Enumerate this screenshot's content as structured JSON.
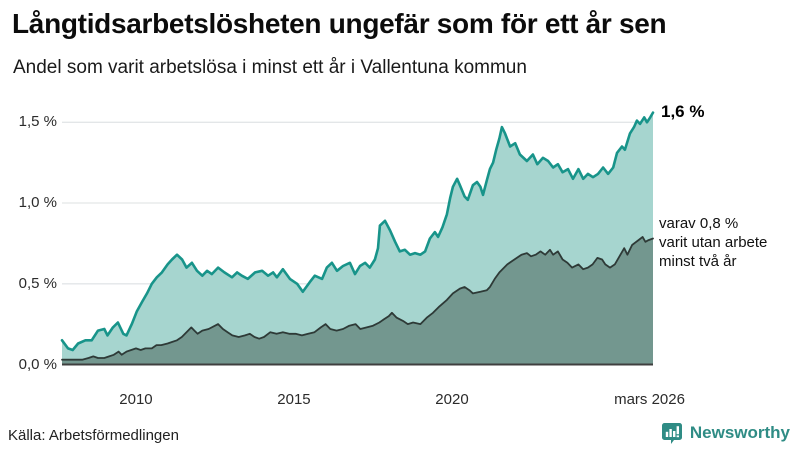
{
  "header": {
    "title": "Långtidsarbetslösheten ungefär som för ett år sen",
    "subtitle": "Andel som varit arbetslösa i minst ett år i Vallentuna kommun"
  },
  "annotations": {
    "total_end_label": "1,6 %",
    "two_plus_end_label": "varav 0,8 %\nvarit utan arbete\nminst två år"
  },
  "footer": {
    "source": "Källa: Arbetsförmedlingen",
    "brand": "Newsworthy"
  },
  "colors": {
    "total_line": "#18948a",
    "total_fill": "#a6d5cf",
    "two_plus_line": "#2e3a37",
    "two_plus_fill": "#73978f",
    "gridline": "#e3e6e8",
    "axis_line": "#3f3f3f",
    "brand_teal": "#2f8c85",
    "text": "#0c0c0c"
  },
  "chart_data": {
    "type": "area",
    "title": "Långtidsarbetslösheten ungefär som för ett år sen",
    "subtitle": "Andel som varit arbetslösa i minst ett år i Vallentuna kommun",
    "unit": "%",
    "grid": true,
    "legend_position": "end-of-line-annotations",
    "x_range": [
      2007.66,
      2026.36
    ],
    "ylim": [
      0,
      1.65
    ],
    "x_axis": {
      "ticks": [
        {
          "label": "2010",
          "year": 2010
        },
        {
          "label": "2015",
          "year": 2015
        },
        {
          "label": "2020",
          "year": 2020
        },
        {
          "label": "mars 2026",
          "year": 2026.25
        }
      ]
    },
    "y_axis": {
      "ticks": [
        {
          "label": "0,0 %",
          "value": 0
        },
        {
          "label": "0,5 %",
          "value": 0.5
        },
        {
          "label": "1,0 %",
          "value": 1.0
        },
        {
          "label": "1,5 %",
          "value": 1.5
        }
      ]
    },
    "series": [
      {
        "name": "Andel som varit arbetslösa i minst ett år",
        "end_label": "1,6 %",
        "end_value": 1.6,
        "line_color": "#18948a",
        "fill_color": "#a6d5cf",
        "points": [
          [
            2007.66,
            0.15
          ],
          [
            2007.85,
            0.1
          ],
          [
            2008.0,
            0.09
          ],
          [
            2008.17,
            0.13
          ],
          [
            2008.4,
            0.15
          ],
          [
            2008.6,
            0.15
          ],
          [
            2008.8,
            0.21
          ],
          [
            2009.0,
            0.22
          ],
          [
            2009.1,
            0.18
          ],
          [
            2009.27,
            0.23
          ],
          [
            2009.43,
            0.26
          ],
          [
            2009.6,
            0.19
          ],
          [
            2009.7,
            0.18
          ],
          [
            2009.87,
            0.25
          ],
          [
            2010.03,
            0.33
          ],
          [
            2010.2,
            0.39
          ],
          [
            2010.35,
            0.44
          ],
          [
            2010.5,
            0.5
          ],
          [
            2010.66,
            0.54
          ],
          [
            2010.82,
            0.57
          ],
          [
            2011.0,
            0.62
          ],
          [
            2011.14,
            0.65
          ],
          [
            2011.3,
            0.68
          ],
          [
            2011.46,
            0.65
          ],
          [
            2011.6,
            0.6
          ],
          [
            2011.77,
            0.63
          ],
          [
            2011.93,
            0.58
          ],
          [
            2012.1,
            0.55
          ],
          [
            2012.25,
            0.58
          ],
          [
            2012.4,
            0.56
          ],
          [
            2012.6,
            0.6
          ],
          [
            2012.8,
            0.57
          ],
          [
            2013.04,
            0.54
          ],
          [
            2013.2,
            0.57
          ],
          [
            2013.35,
            0.55
          ],
          [
            2013.54,
            0.53
          ],
          [
            2013.77,
            0.57
          ],
          [
            2013.99,
            0.58
          ],
          [
            2014.18,
            0.55
          ],
          [
            2014.34,
            0.57
          ],
          [
            2014.46,
            0.54
          ],
          [
            2014.65,
            0.59
          ],
          [
            2014.87,
            0.53
          ],
          [
            2015.1,
            0.5
          ],
          [
            2015.28,
            0.45
          ],
          [
            2015.5,
            0.51
          ],
          [
            2015.66,
            0.55
          ],
          [
            2015.89,
            0.53
          ],
          [
            2016.04,
            0.6
          ],
          [
            2016.2,
            0.63
          ],
          [
            2016.36,
            0.58
          ],
          [
            2016.55,
            0.61
          ],
          [
            2016.77,
            0.63
          ],
          [
            2016.93,
            0.56
          ],
          [
            2017.09,
            0.61
          ],
          [
            2017.25,
            0.63
          ],
          [
            2017.4,
            0.6
          ],
          [
            2017.56,
            0.65
          ],
          [
            2017.66,
            0.72
          ],
          [
            2017.72,
            0.86
          ],
          [
            2017.88,
            0.89
          ],
          [
            2018.04,
            0.83
          ],
          [
            2018.2,
            0.76
          ],
          [
            2018.35,
            0.7
          ],
          [
            2018.51,
            0.71
          ],
          [
            2018.67,
            0.68
          ],
          [
            2018.83,
            0.69
          ],
          [
            2019.0,
            0.68
          ],
          [
            2019.15,
            0.7
          ],
          [
            2019.3,
            0.78
          ],
          [
            2019.46,
            0.82
          ],
          [
            2019.56,
            0.79
          ],
          [
            2019.7,
            0.85
          ],
          [
            2019.84,
            0.93
          ],
          [
            2019.94,
            1.03
          ],
          [
            2020.03,
            1.1
          ],
          [
            2020.16,
            1.15
          ],
          [
            2020.25,
            1.11
          ],
          [
            2020.4,
            1.04
          ],
          [
            2020.5,
            1.02
          ],
          [
            2020.66,
            1.11
          ],
          [
            2020.79,
            1.13
          ],
          [
            2020.9,
            1.1
          ],
          [
            2020.98,
            1.05
          ],
          [
            2021.1,
            1.14
          ],
          [
            2021.2,
            1.21
          ],
          [
            2021.3,
            1.25
          ],
          [
            2021.4,
            1.33
          ],
          [
            2021.5,
            1.4
          ],
          [
            2021.58,
            1.47
          ],
          [
            2021.68,
            1.43
          ],
          [
            2021.84,
            1.35
          ],
          [
            2022.0,
            1.37
          ],
          [
            2022.15,
            1.3
          ],
          [
            2022.37,
            1.26
          ],
          [
            2022.56,
            1.3
          ],
          [
            2022.7,
            1.24
          ],
          [
            2022.88,
            1.28
          ],
          [
            2023.04,
            1.26
          ],
          [
            2023.2,
            1.22
          ],
          [
            2023.35,
            1.24
          ],
          [
            2023.5,
            1.19
          ],
          [
            2023.67,
            1.21
          ],
          [
            2023.83,
            1.15
          ],
          [
            2024.0,
            1.21
          ],
          [
            2024.15,
            1.15
          ],
          [
            2024.3,
            1.18
          ],
          [
            2024.46,
            1.16
          ],
          [
            2024.62,
            1.18
          ],
          [
            2024.78,
            1.22
          ],
          [
            2024.94,
            1.18
          ],
          [
            2025.1,
            1.22
          ],
          [
            2025.22,
            1.31
          ],
          [
            2025.38,
            1.35
          ],
          [
            2025.47,
            1.33
          ],
          [
            2025.63,
            1.43
          ],
          [
            2025.76,
            1.47
          ],
          [
            2025.85,
            1.51
          ],
          [
            2025.95,
            1.49
          ],
          [
            2026.08,
            1.53
          ],
          [
            2026.17,
            1.5
          ],
          [
            2026.27,
            1.53
          ],
          [
            2026.36,
            1.56
          ]
        ]
      },
      {
        "name": "varav utan arbete minst två år",
        "end_label": "varav 0,8 % varit utan arbete minst två år",
        "end_value": 0.8,
        "line_color": "#2e3a37",
        "fill_color": "#73978f",
        "points": [
          [
            2007.66,
            0.03
          ],
          [
            2008.0,
            0.03
          ],
          [
            2008.3,
            0.03
          ],
          [
            2008.5,
            0.04
          ],
          [
            2008.65,
            0.05
          ],
          [
            2008.8,
            0.04
          ],
          [
            2009.0,
            0.04
          ],
          [
            2009.15,
            0.05
          ],
          [
            2009.3,
            0.06
          ],
          [
            2009.45,
            0.08
          ],
          [
            2009.55,
            0.06
          ],
          [
            2009.7,
            0.08
          ],
          [
            2009.85,
            0.09
          ],
          [
            2010.0,
            0.1
          ],
          [
            2010.15,
            0.09
          ],
          [
            2010.3,
            0.1
          ],
          [
            2010.5,
            0.1
          ],
          [
            2010.65,
            0.12
          ],
          [
            2010.8,
            0.12
          ],
          [
            2011.0,
            0.13
          ],
          [
            2011.15,
            0.14
          ],
          [
            2011.3,
            0.15
          ],
          [
            2011.45,
            0.17
          ],
          [
            2011.6,
            0.2
          ],
          [
            2011.75,
            0.23
          ],
          [
            2011.85,
            0.21
          ],
          [
            2011.95,
            0.19
          ],
          [
            2012.1,
            0.21
          ],
          [
            2012.3,
            0.22
          ],
          [
            2012.5,
            0.24
          ],
          [
            2012.6,
            0.25
          ],
          [
            2012.75,
            0.22
          ],
          [
            2012.9,
            0.2
          ],
          [
            2013.05,
            0.18
          ],
          [
            2013.25,
            0.17
          ],
          [
            2013.45,
            0.18
          ],
          [
            2013.6,
            0.19
          ],
          [
            2013.75,
            0.17
          ],
          [
            2013.9,
            0.16
          ],
          [
            2014.05,
            0.17
          ],
          [
            2014.25,
            0.2
          ],
          [
            2014.45,
            0.19
          ],
          [
            2014.65,
            0.2
          ],
          [
            2014.85,
            0.19
          ],
          [
            2015.05,
            0.19
          ],
          [
            2015.25,
            0.18
          ],
          [
            2015.45,
            0.19
          ],
          [
            2015.65,
            0.2
          ],
          [
            2015.85,
            0.23
          ],
          [
            2016.0,
            0.25
          ],
          [
            2016.15,
            0.22
          ],
          [
            2016.35,
            0.21
          ],
          [
            2016.55,
            0.22
          ],
          [
            2016.75,
            0.24
          ],
          [
            2016.95,
            0.25
          ],
          [
            2017.1,
            0.22
          ],
          [
            2017.3,
            0.23
          ],
          [
            2017.5,
            0.24
          ],
          [
            2017.7,
            0.26
          ],
          [
            2017.85,
            0.28
          ],
          [
            2018.0,
            0.3
          ],
          [
            2018.1,
            0.32
          ],
          [
            2018.25,
            0.29
          ],
          [
            2018.45,
            0.27
          ],
          [
            2018.6,
            0.25
          ],
          [
            2018.77,
            0.26
          ],
          [
            2019.0,
            0.25
          ],
          [
            2019.2,
            0.29
          ],
          [
            2019.4,
            0.32
          ],
          [
            2019.6,
            0.36
          ],
          [
            2019.84,
            0.4
          ],
          [
            2020.03,
            0.44
          ],
          [
            2020.25,
            0.47
          ],
          [
            2020.4,
            0.48
          ],
          [
            2020.55,
            0.46
          ],
          [
            2020.66,
            0.44
          ],
          [
            2020.9,
            0.45
          ],
          [
            2021.1,
            0.46
          ],
          [
            2021.2,
            0.48
          ],
          [
            2021.35,
            0.53
          ],
          [
            2021.5,
            0.57
          ],
          [
            2021.75,
            0.62
          ],
          [
            2021.9,
            0.64
          ],
          [
            2022.05,
            0.66
          ],
          [
            2022.2,
            0.68
          ],
          [
            2022.37,
            0.69
          ],
          [
            2022.5,
            0.67
          ],
          [
            2022.65,
            0.68
          ],
          [
            2022.8,
            0.7
          ],
          [
            2022.95,
            0.68
          ],
          [
            2023.1,
            0.71
          ],
          [
            2023.2,
            0.68
          ],
          [
            2023.35,
            0.7
          ],
          [
            2023.5,
            0.65
          ],
          [
            2023.65,
            0.63
          ],
          [
            2023.8,
            0.6
          ],
          [
            2024.0,
            0.62
          ],
          [
            2024.15,
            0.59
          ],
          [
            2024.3,
            0.6
          ],
          [
            2024.45,
            0.62
          ],
          [
            2024.6,
            0.66
          ],
          [
            2024.75,
            0.65
          ],
          [
            2024.85,
            0.62
          ],
          [
            2025.0,
            0.6
          ],
          [
            2025.15,
            0.62
          ],
          [
            2025.3,
            0.67
          ],
          [
            2025.45,
            0.72
          ],
          [
            2025.55,
            0.68
          ],
          [
            2025.7,
            0.74
          ],
          [
            2025.9,
            0.77
          ],
          [
            2026.03,
            0.79
          ],
          [
            2026.12,
            0.76
          ],
          [
            2026.22,
            0.77
          ],
          [
            2026.36,
            0.78
          ]
        ]
      }
    ]
  }
}
